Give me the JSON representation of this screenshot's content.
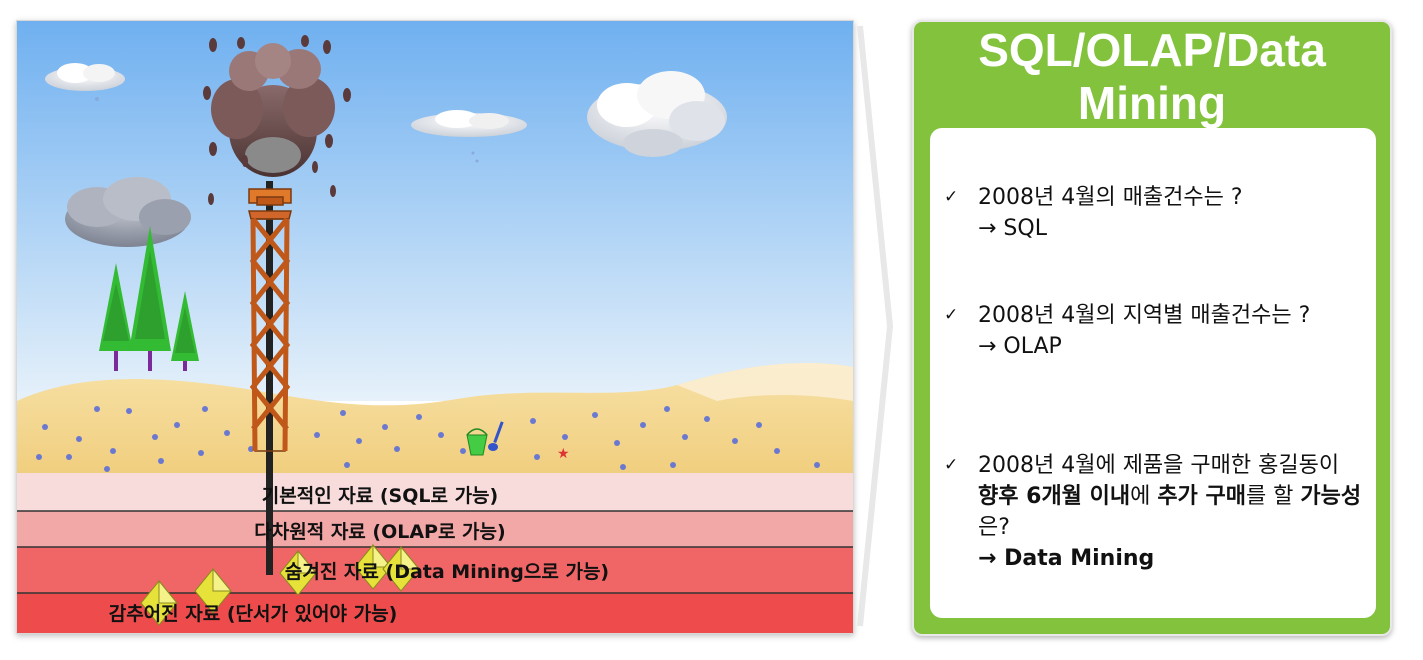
{
  "diagram": {
    "layers": [
      {
        "id": "basic",
        "label": "기본적인 자료 (SQL로 가능)"
      },
      {
        "id": "multidim",
        "label": "다차원적 자료 (OLAP로 가능)"
      },
      {
        "id": "hidden",
        "label": "숨겨진 자료 (Data Mining으로 가능)"
      },
      {
        "id": "concealed",
        "label": "감추어진 자료 (단서가 있어야 가능)"
      }
    ],
    "colors": {
      "sky_top": "#6fb0f0",
      "sky_bottom": "#dcebf8",
      "sand": "#f2d48a",
      "layer_basic": "#f8dcdc",
      "layer_multidim": "#f3a8a8",
      "layer_hidden": "#f06666",
      "layer_concealed": "#ee4c4c",
      "derrick": "#c0581a",
      "oil": "#6a4a4a",
      "tree": "#33bb33",
      "gem": "#e6e23a"
    }
  },
  "panel": {
    "title": "SQL/OLAP/Data Mining",
    "accent": "#83c23d",
    "check_mark": "✓",
    "items": [
      {
        "question": "2008년 4월의 매출건수는 ?",
        "answer": "→ SQL"
      },
      {
        "question": "2008년 4월의 지역별 매출건수는 ?",
        "answer": "→ OLAP"
      },
      {
        "question_parts": {
          "p1": "2008년 4월에 제품을 구매한 홍길동이 ",
          "b1": "향후 6개월 이내",
          "p2": "에 ",
          "b2": "추가 구매",
          "p3": "를 할 ",
          "b3": "가능성",
          "p4": "은?"
        },
        "answer": "→ Data Mining"
      }
    ]
  }
}
